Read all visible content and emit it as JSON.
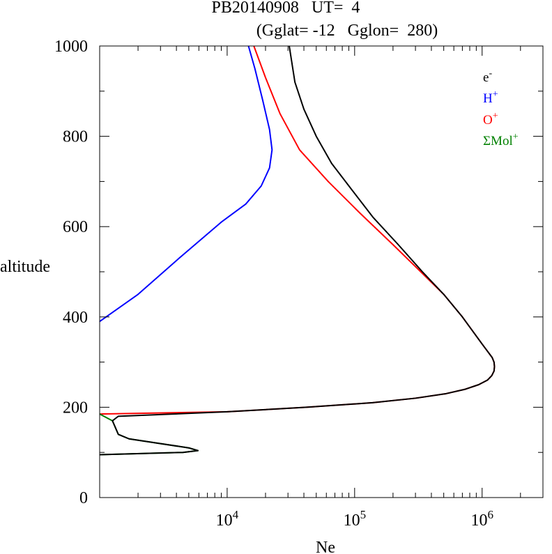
{
  "header": {
    "title_line1": "PB20140908   UT=  4",
    "title_line2": "(Gglat= -12   Gglon=  280)"
  },
  "chart_data": {
    "type": "line",
    "xlabel": "Ne",
    "ylabel": "altitude",
    "xscale": "log",
    "xlim": [
      1000,
      3000000
    ],
    "ylim": [
      0,
      1000
    ],
    "x_ticks": [
      {
        "value": 10000,
        "base": "10",
        "exp": "4"
      },
      {
        "value": 100000,
        "base": "10",
        "exp": "5"
      },
      {
        "value": 1000000,
        "base": "10",
        "exp": "6"
      }
    ],
    "y_ticks": [
      "0",
      "200",
      "400",
      "600",
      "800",
      "1000"
    ],
    "y_tick_values": [
      0,
      200,
      400,
      600,
      800,
      1000
    ],
    "legend_position": "top-right",
    "series": [
      {
        "name": "e-",
        "label_base": "e",
        "label_sup": "-",
        "color": "#000000",
        "points": [
          [
            1000,
            95
          ],
          [
            4500,
            100
          ],
          [
            5900,
            104
          ],
          [
            5000,
            110
          ],
          [
            1700,
            130
          ],
          [
            1400,
            140
          ],
          [
            1260,
            170
          ],
          [
            1400,
            180
          ],
          [
            10000,
            190
          ],
          [
            42000,
            200
          ],
          [
            138000,
            210
          ],
          [
            300000,
            220
          ],
          [
            520000,
            230
          ],
          [
            740000,
            240
          ],
          [
            940000,
            250
          ],
          [
            1100000,
            260
          ],
          [
            1190000,
            270
          ],
          [
            1240000,
            280
          ],
          [
            1250000,
            290
          ],
          [
            1240000,
            300
          ],
          [
            1200000,
            310
          ],
          [
            1000000,
            340
          ],
          [
            700000,
            400
          ],
          [
            500000,
            450
          ],
          [
            340000,
            500
          ],
          [
            220000,
            560
          ],
          [
            140000,
            620
          ],
          [
            96000,
            680
          ],
          [
            66000,
            740
          ],
          [
            50000,
            800
          ],
          [
            40000,
            860
          ],
          [
            34000,
            920
          ],
          [
            30700,
            1000
          ]
        ]
      },
      {
        "name": "H+",
        "label_base": "H",
        "label_sup": "+",
        "color": "#0000ff",
        "points": [
          [
            1000,
            390
          ],
          [
            2000,
            450
          ],
          [
            4200,
            530
          ],
          [
            9000,
            610
          ],
          [
            14000,
            650
          ],
          [
            18500,
            690
          ],
          [
            21500,
            730
          ],
          [
            22500,
            770
          ],
          [
            21500,
            815
          ],
          [
            19000,
            880
          ],
          [
            16500,
            950
          ],
          [
            14700,
            1000
          ]
        ]
      },
      {
        "name": "O+",
        "label_base": "O",
        "label_sup": "+",
        "color": "#ff0000",
        "points": [
          [
            1000,
            185
          ],
          [
            10000,
            190
          ],
          [
            42000,
            200
          ],
          [
            138000,
            210
          ],
          [
            300000,
            220
          ],
          [
            520000,
            230
          ],
          [
            740000,
            240
          ],
          [
            940000,
            250
          ],
          [
            1100000,
            260
          ],
          [
            1190000,
            270
          ],
          [
            1240000,
            280
          ],
          [
            1250000,
            290
          ],
          [
            1240000,
            300
          ],
          [
            1200000,
            310
          ],
          [
            1000000,
            340
          ],
          [
            700000,
            400
          ],
          [
            500000,
            450
          ],
          [
            330000,
            500
          ],
          [
            200000,
            560
          ],
          [
            110000,
            630
          ],
          [
            62000,
            700
          ],
          [
            37000,
            770
          ],
          [
            26000,
            850
          ],
          [
            20000,
            930
          ],
          [
            16200,
            1000
          ]
        ]
      },
      {
        "name": "ΣMol+",
        "label_base": "ΣMol",
        "label_sup": "+",
        "color": "#008000",
        "points": [
          [
            1000,
            95
          ],
          [
            4500,
            100
          ],
          [
            5900,
            104
          ],
          [
            5000,
            110
          ],
          [
            1700,
            130
          ],
          [
            1400,
            140
          ],
          [
            1260,
            170
          ],
          [
            1000,
            185
          ]
        ]
      }
    ]
  }
}
